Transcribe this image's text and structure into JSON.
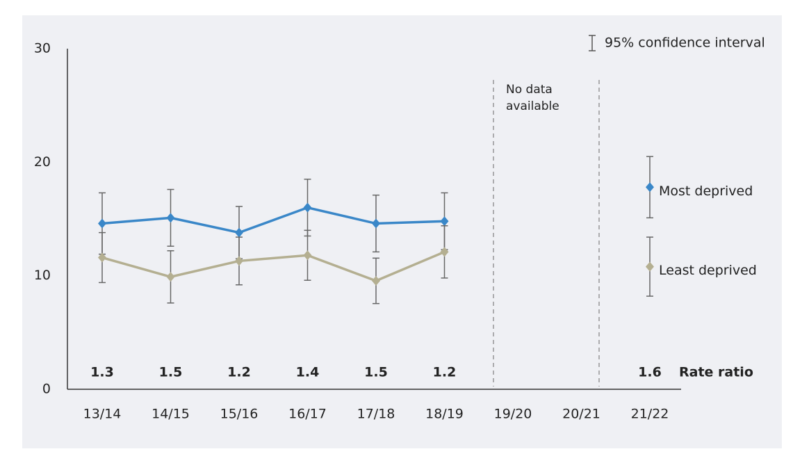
{
  "chart_data": {
    "type": "line",
    "categories": [
      "13/14",
      "14/15",
      "15/16",
      "16/17",
      "17/18",
      "18/19",
      "19/20",
      "20/21",
      "21/22"
    ],
    "series": [
      {
        "name": "Most deprived",
        "color": "#3a87c8",
        "values": [
          14.6,
          15.1,
          13.8,
          16.0,
          14.6,
          14.8,
          null,
          null,
          17.8
        ],
        "errors": [
          2.7,
          2.5,
          2.3,
          2.5,
          2.5,
          2.5,
          null,
          null,
          2.7
        ]
      },
      {
        "name": "Least deprived",
        "color": "#b4af91",
        "values": [
          11.6,
          9.9,
          11.3,
          11.8,
          9.55,
          12.1,
          null,
          null,
          10.8
        ],
        "errors": [
          2.2,
          2.3,
          2.1,
          2.2,
          2.0,
          2.3,
          null,
          null,
          2.6
        ]
      }
    ],
    "rate_ratio": {
      "label": "Rate ratio",
      "values": [
        1.3,
        1.5,
        1.2,
        1.4,
        1.5,
        1.2,
        null,
        null,
        1.6
      ]
    },
    "annotation": [
      "No data",
      "available"
    ],
    "ci_legend": "95% confidence interval",
    "ylim": [
      0,
      30
    ],
    "yticks": [
      0,
      10,
      20,
      30
    ],
    "grid": false
  }
}
